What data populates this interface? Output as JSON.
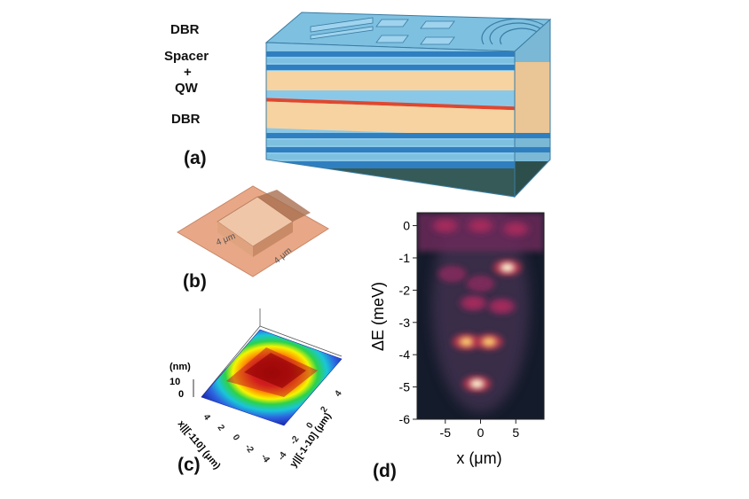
{
  "panel_a": {
    "label": "(a)",
    "layers": {
      "top": "DBR",
      "spacer": "Spacer",
      "plus": "+",
      "qw": "QW",
      "bottom": "DBR"
    }
  },
  "panel_b": {
    "label": "(b)",
    "dims": [
      "4 μm",
      "4 μm"
    ]
  },
  "panel_c": {
    "label": "(c)",
    "zlabel": "(nm)",
    "zticks": [
      "10",
      "0"
    ],
    "xlabel": "x||[-110] (μm)",
    "ylabel": "y||[-1-10] (μm)",
    "xticks": [
      "4",
      "2",
      "0",
      "-2",
      "-4"
    ],
    "yticks": [
      "-4",
      "-2",
      "0",
      "2",
      "4"
    ]
  },
  "panel_d": {
    "label": "(d)",
    "xlabel": "x (μm)",
    "ylabel": "ΔE (meV)"
  },
  "chart_data": {
    "type": "heatmap",
    "xlabel": "x (μm)",
    "ylabel": "ΔE (meV)",
    "xlim": [
      -9,
      9
    ],
    "ylim": [
      -6,
      0.4
    ],
    "xticks": [
      -5,
      0,
      5
    ],
    "yticks": [
      0,
      -1,
      -2,
      -3,
      -4,
      -5,
      -6
    ],
    "spots": [
      {
        "x": -5,
        "y": 0,
        "intensity": 0.55
      },
      {
        "x": 0,
        "y": 0,
        "intensity": 0.6
      },
      {
        "x": 5,
        "y": -0.1,
        "intensity": 0.6
      },
      {
        "x": 3.8,
        "y": -1.3,
        "intensity": 0.95
      },
      {
        "x": -4,
        "y": -1.5,
        "intensity": 0.5
      },
      {
        "x": 0,
        "y": -1.8,
        "intensity": 0.45
      },
      {
        "x": -1,
        "y": -2.4,
        "intensity": 0.6
      },
      {
        "x": 3,
        "y": -2.5,
        "intensity": 0.55
      },
      {
        "x": -2,
        "y": -3.6,
        "intensity": 0.85
      },
      {
        "x": 1.2,
        "y": -3.6,
        "intensity": 0.85
      },
      {
        "x": -0.5,
        "y": -4.9,
        "intensity": 1.0
      }
    ]
  }
}
